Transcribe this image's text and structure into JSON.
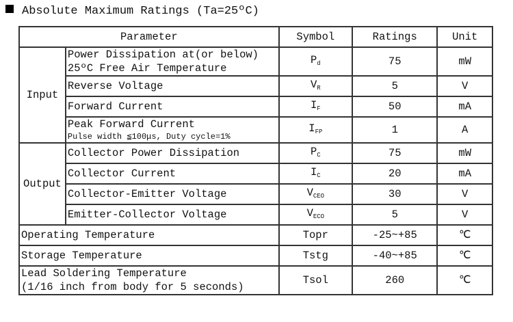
{
  "title": "Absolute Maximum Ratings (Ta=25ºC)",
  "table": {
    "header": [
      "Parameter",
      "Symbol",
      "Ratings",
      "Unit"
    ],
    "groups": [
      {
        "label": "Input",
        "rows": [
          {
            "parameter": [
              "Power Dissipation at(or below)",
              "25ºC Free Air Temperature"
            ],
            "symbol": {
              "main": "P",
              "sub": "d"
            },
            "rating": "75",
            "unit": "mW"
          },
          {
            "parameter": [
              "Reverse Voltage"
            ],
            "symbol": {
              "main": "V",
              "sub": "R"
            },
            "rating": "5",
            "unit": "V"
          },
          {
            "parameter": [
              "Forward Current"
            ],
            "symbol": {
              "main": "I",
              "sub": "F"
            },
            "rating": "50",
            "unit": "mA"
          },
          {
            "parameter": [
              "Peak Forward Current"
            ],
            "note": "Pulse width ≦100μs, Duty cycle=1%",
            "symbol": {
              "main": "I",
              "sub": "FP"
            },
            "rating": "1",
            "unit": "A"
          }
        ]
      },
      {
        "label": "Output",
        "rows": [
          {
            "parameter": [
              "Collector Power Dissipation"
            ],
            "symbol": {
              "main": "P",
              "sub": "C"
            },
            "rating": "75",
            "unit": "mW"
          },
          {
            "parameter": [
              "Collector Current"
            ],
            "symbol": {
              "main": "I",
              "sub": "C"
            },
            "rating": "20",
            "unit": "mA"
          },
          {
            "parameter": [
              "Collector-Emitter Voltage"
            ],
            "symbol": {
              "main": "V",
              "sub": "CEO"
            },
            "rating": "30",
            "unit": "V"
          },
          {
            "parameter": [
              "Emitter-Collector Voltage"
            ],
            "symbol": {
              "main": "V",
              "sub": "ECO"
            },
            "rating": "5",
            "unit": "V"
          }
        ]
      }
    ],
    "rows": [
      {
        "parameter": [
          "Operating Temperature"
        ],
        "symbol": {
          "main": "Topr"
        },
        "rating": "-25~+85",
        "unit": "℃"
      },
      {
        "parameter": [
          "Storage Temperature"
        ],
        "symbol": {
          "main": "Tstg"
        },
        "rating": "-40~+85",
        "unit": "℃"
      },
      {
        "parameter": [
          "Lead Soldering Temperature",
          "(1/16 inch from body for 5 seconds)"
        ],
        "symbol": {
          "main": "Tsol"
        },
        "rating": "260",
        "unit": "℃"
      }
    ]
  }
}
